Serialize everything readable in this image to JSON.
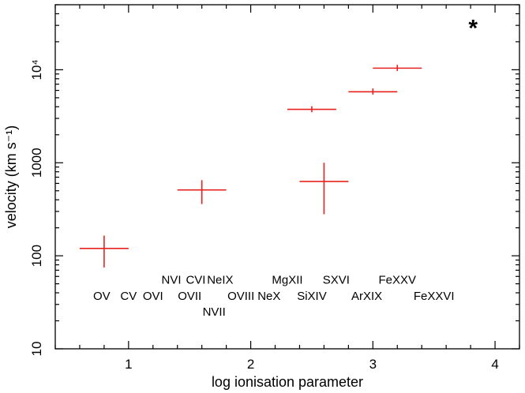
{
  "chart_data": {
    "type": "scatter",
    "title": "",
    "xlabel": "log ionisation parameter",
    "ylabel": "velocity (km s⁻¹)",
    "xlim": [
      0.4,
      4.2
    ],
    "ylim": [
      10,
      50000
    ],
    "yscale": "log",
    "x_ticks": [
      1,
      2,
      3,
      4
    ],
    "x_tick_labels": [
      "1",
      "2",
      "3",
      "4"
    ],
    "y_ticks": [
      10,
      100,
      1000,
      10000
    ],
    "y_tick_labels": [
      "10",
      "100",
      "1000",
      "10⁴"
    ],
    "grid": false,
    "color": "#e8231f",
    "series": [
      {
        "points": [
          {
            "x": 0.8,
            "xerr": 0.2,
            "y": 120,
            "ylo": 75,
            "yhi": 165
          },
          {
            "x": 1.6,
            "xerr": 0.2,
            "y": 510,
            "ylo": 360,
            "yhi": 650
          },
          {
            "x": 2.6,
            "xerr": 0.2,
            "y": 630,
            "ylo": 280,
            "yhi": 1000
          },
          {
            "x": 2.5,
            "xerr": 0.2,
            "y": 3750,
            "ylo": 3500,
            "yhi": 4050
          },
          {
            "x": 3.0,
            "xerr": 0.2,
            "y": 5800,
            "ylo": 5400,
            "yhi": 6300
          },
          {
            "x": 3.2,
            "xerr": 0.2,
            "y": 10400,
            "ylo": 9700,
            "yhi": 11300
          }
        ]
      }
    ],
    "annotations": [
      {
        "text": "OV",
        "x": 0.78,
        "y": 37,
        "align": "middle"
      },
      {
        "text": "CV",
        "x": 1.0,
        "y": 37,
        "align": "middle"
      },
      {
        "text": "OVI",
        "x": 1.2,
        "y": 37,
        "align": "middle"
      },
      {
        "text": "NVI",
        "x": 1.35,
        "y": 55,
        "align": "middle"
      },
      {
        "text": "CVI",
        "x": 1.55,
        "y": 55,
        "align": "middle"
      },
      {
        "text": "NeIX",
        "x": 1.75,
        "y": 55,
        "align": "middle"
      },
      {
        "text": "OVII",
        "x": 1.5,
        "y": 37,
        "align": "middle"
      },
      {
        "text": "NVII",
        "x": 1.7,
        "y": 25,
        "align": "middle"
      },
      {
        "text": "OVIII",
        "x": 1.92,
        "y": 37,
        "align": "middle"
      },
      {
        "text": "NeX",
        "x": 2.15,
        "y": 37,
        "align": "middle"
      },
      {
        "text": "MgXII",
        "x": 2.3,
        "y": 55,
        "align": "middle"
      },
      {
        "text": "SiXIV",
        "x": 2.5,
        "y": 37,
        "align": "middle"
      },
      {
        "text": "SXVI",
        "x": 2.7,
        "y": 55,
        "align": "middle"
      },
      {
        "text": "ArXIX",
        "x": 2.95,
        "y": 37,
        "align": "middle"
      },
      {
        "text": "FeXXV",
        "x": 3.2,
        "y": 55,
        "align": "middle"
      },
      {
        "text": "FeXXVI",
        "x": 3.5,
        "y": 37,
        "align": "middle"
      }
    ],
    "marker": {
      "text": "*",
      "x": 3.82,
      "y": 33000
    }
  }
}
